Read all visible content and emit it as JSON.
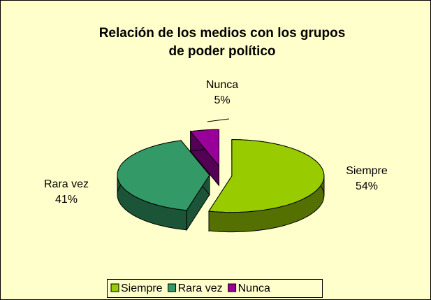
{
  "chart_data": {
    "type": "pie",
    "title": [
      "Relación de los medios con los grupos",
      "de poder político"
    ],
    "categories": [
      "Siempre",
      "Rara vez",
      "Nunca"
    ],
    "values": [
      54,
      41,
      5
    ],
    "value_labels": [
      "54%",
      "41%",
      "5%"
    ],
    "colors": [
      "#99CC00",
      "#339966",
      "#990099"
    ],
    "legend": "bottom"
  }
}
